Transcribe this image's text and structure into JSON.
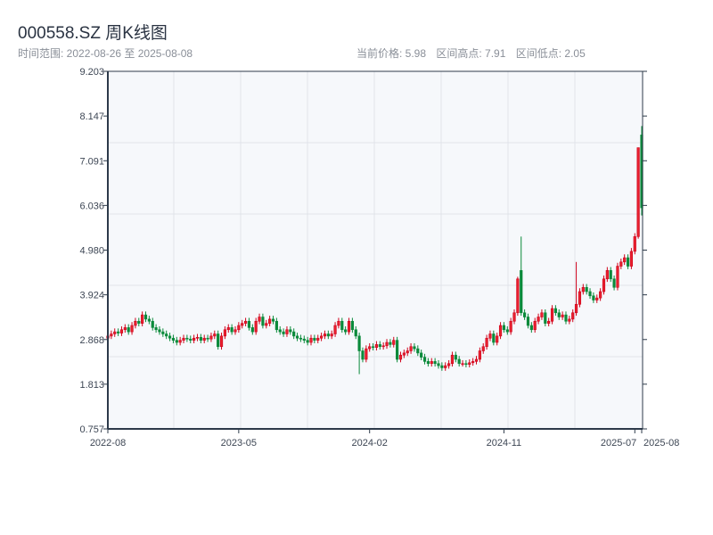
{
  "header": {
    "title": "000558.SZ 周K线图",
    "range": "时间范围: 2022-08-26 至 2025-08-08",
    "current_price": "当前价格: 5.98",
    "range_high": "区间高点: 7.91",
    "range_low": "区间低点: 2.05"
  },
  "chart_data": {
    "type": "candlestick",
    "title": "000558.SZ 周K线图",
    "start_date": "2022-08-26",
    "end_date": "2025-08-08",
    "frequency": "weekly",
    "ylim": [
      0.757,
      9.203
    ],
    "y_ticks": [
      "0.757",
      "1.813",
      "2.868",
      "3.924",
      "4.980",
      "6.036",
      "7.091",
      "8.147",
      "9.203"
    ],
    "x_ticks": [
      {
        "label": "2022-08",
        "index": 0
      },
      {
        "label": "2023-05",
        "index": 38
      },
      {
        "label": "2024-02",
        "index": 76
      },
      {
        "label": "2024-11",
        "index": 115
      },
      {
        "label": "2025-07",
        "index": 153
      },
      {
        "label": "2025-08",
        "index": 155
      }
    ],
    "up_color": "#d0021b",
    "down_color": "#0a8a3a",
    "first_open": 2.9,
    "close": [
      2.95,
      3.0,
      3.05,
      3.02,
      3.1,
      3.15,
      3.05,
      3.2,
      3.3,
      3.25,
      3.45,
      3.35,
      3.3,
      3.15,
      3.1,
      3.05,
      3.0,
      2.95,
      2.9,
      2.85,
      2.8,
      2.85,
      2.9,
      2.88,
      2.85,
      2.9,
      2.92,
      2.85,
      2.9,
      2.88,
      2.95,
      3.0,
      2.7,
      2.95,
      3.1,
      3.15,
      3.05,
      3.1,
      3.2,
      3.25,
      3.3,
      3.15,
      3.05,
      3.3,
      3.4,
      3.2,
      3.25,
      3.35,
      3.3,
      3.1,
      3.05,
      3.0,
      3.1,
      3.05,
      2.95,
      2.9,
      2.88,
      2.85,
      2.8,
      2.9,
      2.85,
      2.9,
      2.95,
      3.0,
      2.95,
      3.0,
      3.2,
      3.3,
      3.1,
      3.05,
      3.3,
      3.1,
      2.95,
      2.6,
      2.4,
      2.65,
      2.7,
      2.68,
      2.75,
      2.7,
      2.72,
      2.8,
      2.75,
      2.85,
      2.4,
      2.5,
      2.55,
      2.6,
      2.7,
      2.65,
      2.55,
      2.45,
      2.35,
      2.3,
      2.35,
      2.3,
      2.25,
      2.2,
      2.25,
      2.3,
      2.5,
      2.4,
      2.3,
      2.3,
      2.28,
      2.32,
      2.35,
      2.4,
      2.6,
      2.7,
      2.9,
      3.0,
      2.8,
      2.95,
      3.2,
      3.1,
      3.05,
      3.3,
      3.5,
      4.3,
      3.5,
      3.4,
      3.2,
      3.1,
      3.3,
      3.4,
      3.5,
      3.25,
      3.3,
      3.6,
      3.5,
      3.4,
      3.45,
      3.3,
      3.35,
      3.5,
      3.7,
      4.0,
      4.1,
      4.0,
      3.9,
      3.8,
      3.85,
      4.0,
      4.3,
      4.5,
      4.3,
      4.1,
      4.6,
      4.7,
      4.8,
      4.6,
      4.95,
      5.3,
      7.4,
      5.98
    ],
    "overrides": {
      "73": {
        "low": 2.05
      },
      "119": {
        "high": 4.35
      },
      "120": {
        "open": 4.5,
        "high": 5.3
      },
      "136": {
        "high": 4.7
      },
      "154": {
        "open": 5.3,
        "high": 7.4,
        "low": 5.25
      },
      "155": {
        "open": 7.7,
        "high": 7.91,
        "low": 5.8
      }
    }
  }
}
